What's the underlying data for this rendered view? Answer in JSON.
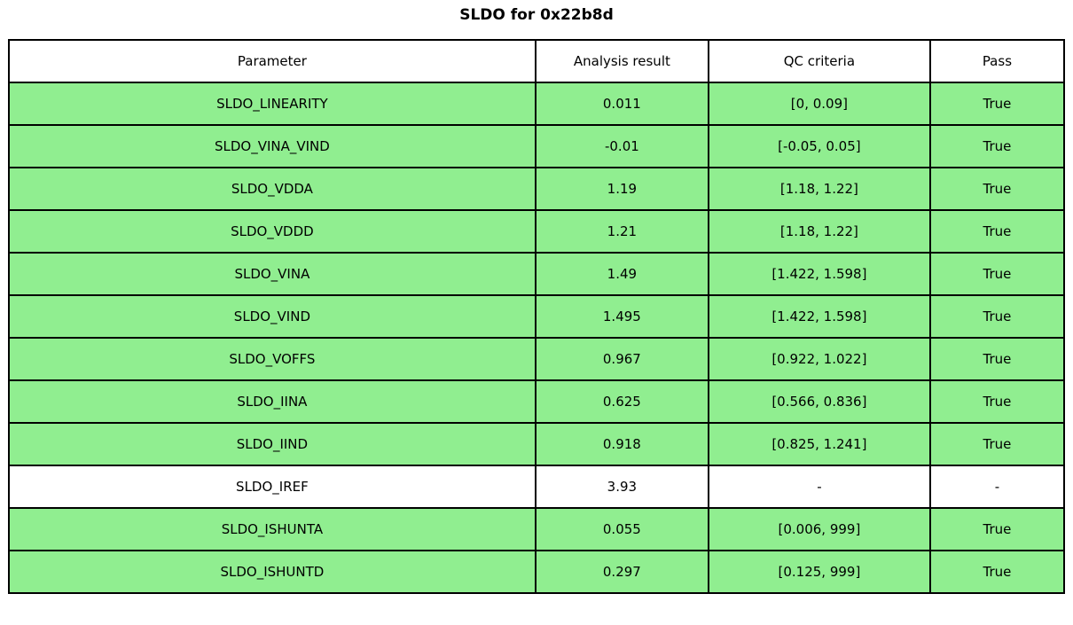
{
  "title": "SLDO for 0x22b8d",
  "colors": {
    "pass_green": "#90EE90",
    "border": "#000000",
    "background": "#FFFFFF"
  },
  "table": {
    "headers": [
      "Parameter",
      "Analysis result",
      "QC criteria",
      "Pass"
    ],
    "rows": [
      {
        "parameter": "SLDO_LINEARITY",
        "result": "0.011",
        "criteria": "[0, 0.09]",
        "pass": "True",
        "highlight": true
      },
      {
        "parameter": "SLDO_VINA_VIND",
        "result": "-0.01",
        "criteria": "[-0.05, 0.05]",
        "pass": "True",
        "highlight": true
      },
      {
        "parameter": "SLDO_VDDA",
        "result": "1.19",
        "criteria": "[1.18, 1.22]",
        "pass": "True",
        "highlight": true
      },
      {
        "parameter": "SLDO_VDDD",
        "result": "1.21",
        "criteria": "[1.18, 1.22]",
        "pass": "True",
        "highlight": true
      },
      {
        "parameter": "SLDO_VINA",
        "result": "1.49",
        "criteria": "[1.422, 1.598]",
        "pass": "True",
        "highlight": true
      },
      {
        "parameter": "SLDO_VIND",
        "result": "1.495",
        "criteria": "[1.422, 1.598]",
        "pass": "True",
        "highlight": true
      },
      {
        "parameter": "SLDO_VOFFS",
        "result": "0.967",
        "criteria": "[0.922, 1.022]",
        "pass": "True",
        "highlight": true
      },
      {
        "parameter": "SLDO_IINA",
        "result": "0.625",
        "criteria": "[0.566, 0.836]",
        "pass": "True",
        "highlight": true
      },
      {
        "parameter": "SLDO_IIND",
        "result": "0.918",
        "criteria": "[0.825, 1.241]",
        "pass": "True",
        "highlight": true
      },
      {
        "parameter": "SLDO_IREF",
        "result": "3.93",
        "criteria": "-",
        "pass": "-",
        "highlight": false
      },
      {
        "parameter": "SLDO_ISHUNTA",
        "result": "0.055",
        "criteria": "[0.006, 999]",
        "pass": "True",
        "highlight": true
      },
      {
        "parameter": "SLDO_ISHUNTD",
        "result": "0.297",
        "criteria": "[0.125, 999]",
        "pass": "True",
        "highlight": true
      }
    ]
  }
}
